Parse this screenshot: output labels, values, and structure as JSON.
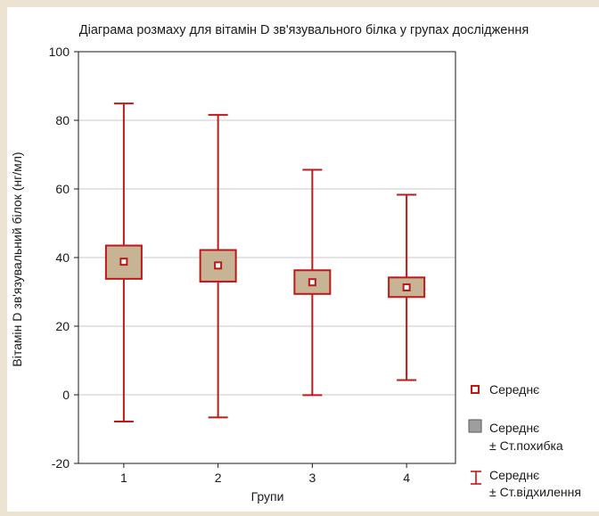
{
  "chart_data": {
    "type": "box",
    "title": "Діаграма розмаху для вітамін D зв'язувального білка у групах дослідження",
    "xlabel": "Групи",
    "ylabel": "Вітамін D зв'язувальний білок (нг/мл)",
    "ylim": [
      -20,
      100
    ],
    "yticks": [
      "-20",
      "0",
      "20",
      "40",
      "60",
      "80",
      "100"
    ],
    "categories": [
      "1",
      "2",
      "3",
      "4"
    ],
    "groups": [
      {
        "category": "1",
        "mean": 38.8,
        "se_low": 33.8,
        "se_high": 43.5,
        "sd_low": -7.8,
        "sd_high": 84.9
      },
      {
        "category": "2",
        "mean": 37.7,
        "se_low": 33.0,
        "se_high": 42.2,
        "sd_low": -6.6,
        "sd_high": 81.6
      },
      {
        "category": "3",
        "mean": 32.8,
        "se_low": 29.4,
        "se_high": 36.3,
        "sd_low": -0.1,
        "sd_high": 65.6
      },
      {
        "category": "4",
        "mean": 31.3,
        "se_low": 28.5,
        "se_high": 34.2,
        "sd_low": 4.3,
        "sd_high": 58.3
      }
    ],
    "grid": true,
    "legend_position": "right",
    "legend": {
      "mean": "Середнє",
      "se": [
        "Середнє",
        "± Ст.похибка"
      ],
      "sd": [
        "Середнє",
        "± Ст.відхилення"
      ]
    },
    "colors": {
      "whisker": "#c0181a",
      "box_fill": "#c6b494",
      "box_stroke": "#c0181a",
      "grid": "#c8c8c8",
      "background": "#ede3d2"
    }
  }
}
